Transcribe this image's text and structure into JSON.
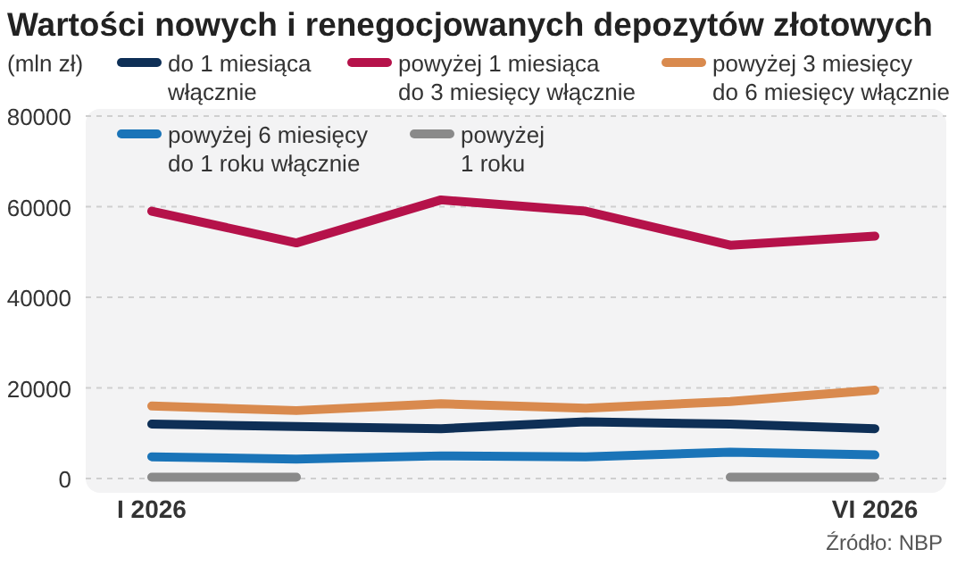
{
  "chart_data": {
    "type": "line",
    "title": "Wartości nowych i renegocjowanych depozytów złotowych",
    "ylabel": "(mln zł)",
    "categories": [
      "I 2026",
      null,
      null,
      null,
      null,
      "VI 2026"
    ],
    "series": [
      {
        "name": "do 1 miesiąca\nwłącznie",
        "color": "#0e2f56",
        "values": [
          12000,
          11500,
          11000,
          12500,
          12000,
          11000
        ]
      },
      {
        "name": "powyżej 1 miesiąca\ndo 3 miesięcy włącznie",
        "color": "#b5124a",
        "values": [
          59000,
          52000,
          61500,
          59000,
          51500,
          53500
        ]
      },
      {
        "name": "powyżej 3 miesięcy\ndo 6 miesięcy włącznie",
        "color": "#d98a4e",
        "values": [
          16000,
          15000,
          16500,
          15500,
          17000,
          19500
        ]
      },
      {
        "name": "powyżej 6 miesięcy\ndo 1 roku włącznie",
        "color": "#1a74b8",
        "values": [
          4800,
          4300,
          5000,
          4800,
          5800,
          5200
        ]
      },
      {
        "name": "powyżej\n1 roku",
        "color": "#8a8a8a",
        "values": [
          300,
          300,
          null,
          null,
          300,
          300
        ]
      }
    ],
    "ylim": [
      0,
      80000
    ],
    "yticks": [
      0,
      20000,
      40000,
      60000,
      80000
    ],
    "grid": "y",
    "legend": "top",
    "line_style": "solid",
    "marker": "none",
    "annotations": [
      "Źródło: NBP"
    ]
  }
}
